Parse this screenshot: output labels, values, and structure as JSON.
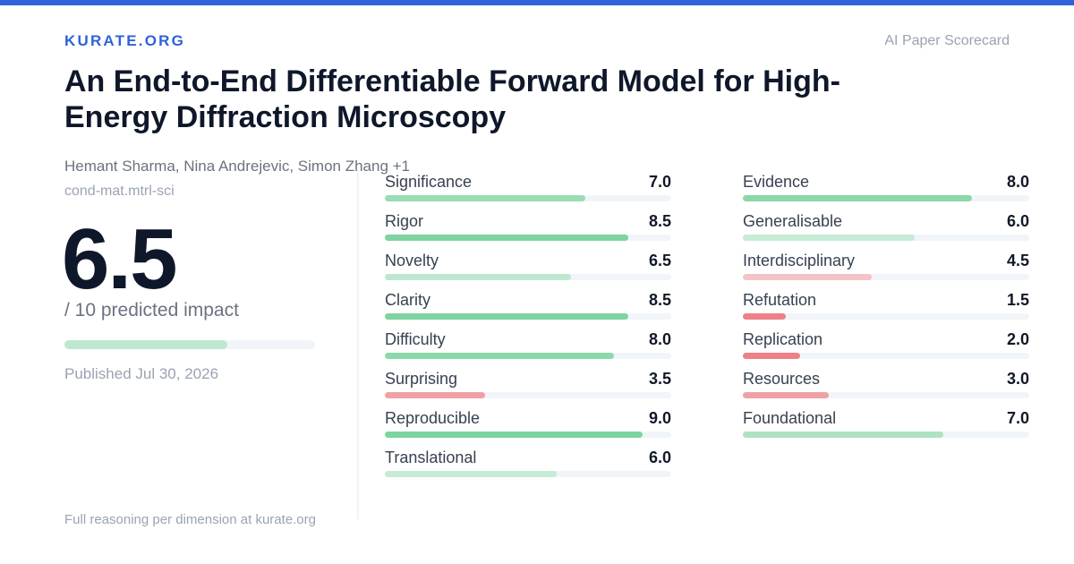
{
  "header": {
    "brand": "KURATE.ORG",
    "tagline": "AI Paper Scorecard"
  },
  "paper": {
    "title": "An End-to-End Differentiable Forward Model for High-Energy Diffraction Microscopy",
    "authors": "Hemant Sharma, Nina Andrejevic, Simon Zhang +1",
    "category": "cond-mat.mtrl-sci",
    "score": "6.5",
    "score_value": 6.5,
    "score_max": 10,
    "score_caption": "/ 10 predicted impact",
    "published": "Published Jul 30, 2026"
  },
  "footer": {
    "note": "Full reasoning per dimension at kurate.org"
  },
  "colors": {
    "accent": "#2f62d8",
    "high": "#7dd4a1",
    "mid_high": "#9adcb4",
    "mid": "#bde8cf",
    "low_mid": "#f2c4c7",
    "low": "#eea2a6",
    "very_low": "#ee8087"
  },
  "dimensions_left": [
    {
      "label": "Significance",
      "value": "7.0",
      "score": 7.0,
      "color": "#9adcb4"
    },
    {
      "label": "Rigor",
      "value": "8.5",
      "score": 8.5,
      "color": "#7dd4a1"
    },
    {
      "label": "Novelty",
      "value": "6.5",
      "score": 6.5,
      "color": "#bde8cf"
    },
    {
      "label": "Clarity",
      "value": "8.5",
      "score": 8.5,
      "color": "#7dd4a1"
    },
    {
      "label": "Difficulty",
      "value": "8.0",
      "score": 8.0,
      "color": "#8bd8aa"
    },
    {
      "label": "Surprising",
      "value": "3.5",
      "score": 3.5,
      "color": "#eea2a6"
    },
    {
      "label": "Reproducible",
      "value": "9.0",
      "score": 9.0,
      "color": "#7dd4a1"
    },
    {
      "label": "Translational",
      "value": "6.0",
      "score": 6.0,
      "color": "#c6ebd6"
    }
  ],
  "dimensions_right": [
    {
      "label": "Evidence",
      "value": "8.0",
      "score": 8.0,
      "color": "#8bd8aa"
    },
    {
      "label": "Generalisable",
      "value": "6.0",
      "score": 6.0,
      "color": "#c6ebd6"
    },
    {
      "label": "Interdisciplinary",
      "value": "4.5",
      "score": 4.5,
      "color": "#f2c4c7"
    },
    {
      "label": "Refutation",
      "value": "1.5",
      "score": 1.5,
      "color": "#ee8087"
    },
    {
      "label": "Replication",
      "value": "2.0",
      "score": 2.0,
      "color": "#ee8087"
    },
    {
      "label": "Resources",
      "value": "3.0",
      "score": 3.0,
      "color": "#eea2a6"
    },
    {
      "label": "Foundational",
      "value": "7.0",
      "score": 7.0,
      "color": "#aee2c3"
    }
  ]
}
